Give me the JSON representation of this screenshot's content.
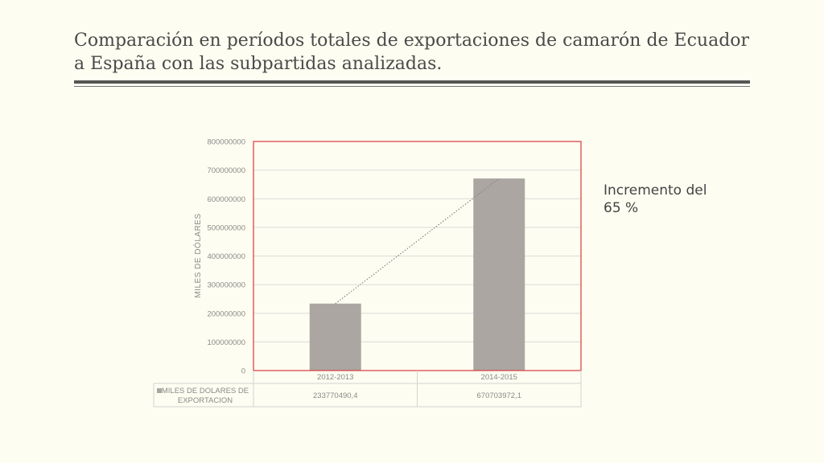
{
  "slide": {
    "title": "Comparación en períodos totales de exportaciones de camarón de Ecuador a España con las subpartidas analizadas.",
    "annotation_line1": "Incremento del",
    "annotation_line2": "65 %"
  },
  "chart_data": {
    "type": "bar",
    "title": "",
    "categories": [
      "2012-2013",
      "2014-2015"
    ],
    "series": [
      {
        "name": "MILES DE DOLARES DE EXPORTACION",
        "values": [
          233770490.4,
          670703972.1
        ],
        "value_labels": [
          "233770490,4",
          "670703972,1"
        ],
        "color": "#aba6a2"
      }
    ],
    "ylabel": "MILES DE DÓLARES",
    "xlabel": "",
    "ylim": [
      0,
      800000000
    ],
    "yticks": [
      "0",
      "100000000",
      "200000000",
      "300000000",
      "400000000",
      "500000000",
      "600000000",
      "700000000",
      "800000000"
    ],
    "grid": true,
    "trendline": "linear, dotted",
    "data_table": true,
    "legend_placement": "data table"
  },
  "colors": {
    "background": "#fdfdf1",
    "plot_border": "#d94848",
    "bar": "#aba6a2",
    "gridline": "#dcdcdc",
    "trendline": "#888888"
  }
}
